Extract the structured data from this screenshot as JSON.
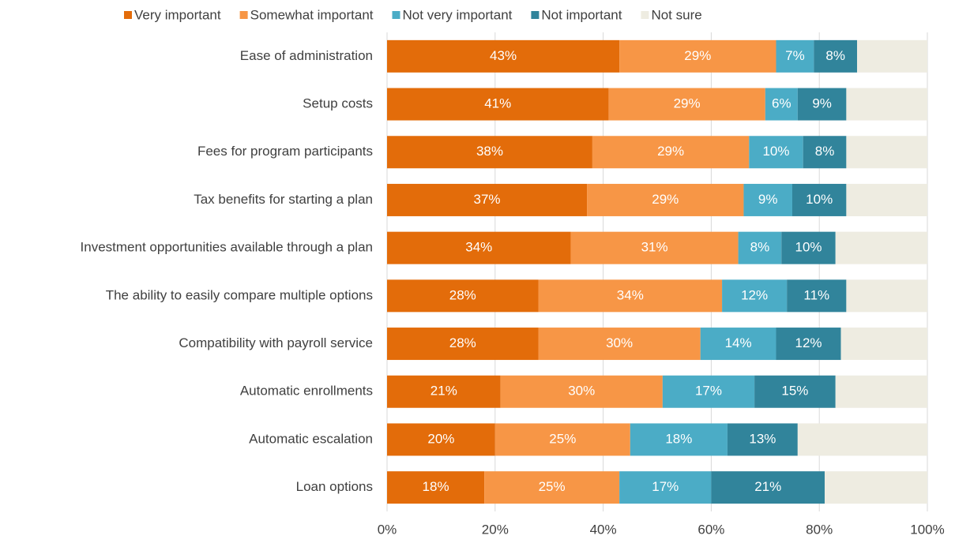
{
  "chart_data": {
    "type": "stacked-barh",
    "categories": [
      "Ease of administration",
      "Setup costs",
      "Fees for program participants",
      "Tax benefits for starting a plan",
      "Investment opportunities available through a plan",
      "The ability to easily compare multiple options",
      "Compatibility with payroll service",
      "Automatic enrollments",
      "Automatic escalation",
      "Loan options"
    ],
    "series": [
      {
        "name": "Very important",
        "color": "#e36c0a",
        "values": [
          43,
          41,
          38,
          37,
          34,
          28,
          28,
          21,
          20,
          18
        ],
        "value_labels": [
          "43%",
          "41%",
          "38%",
          "37%",
          "34%",
          "28%",
          "28%",
          "21%",
          "20%",
          "18%"
        ]
      },
      {
        "name": "Somewhat important",
        "color": "#f79646",
        "values": [
          29,
          29,
          29,
          29,
          31,
          34,
          30,
          30,
          25,
          25
        ],
        "value_labels": [
          "29%",
          "29%",
          "29%",
          "29%",
          "31%",
          "34%",
          "30%",
          "30%",
          "25%",
          "25%"
        ]
      },
      {
        "name": "Not very important",
        "color": "#4bacc6",
        "values": [
          7,
          6,
          10,
          9,
          8,
          12,
          14,
          17,
          18,
          17
        ],
        "value_labels": [
          "7%",
          "6%",
          "10%",
          "9%",
          "8%",
          "12%",
          "14%",
          "17%",
          "18%",
          "17%"
        ]
      },
      {
        "name": "Not important",
        "color": "#31849b",
        "values": [
          8,
          9,
          8,
          10,
          10,
          11,
          12,
          15,
          13,
          21
        ],
        "value_labels": [
          "8%",
          "9%",
          "8%",
          "10%",
          "10%",
          "11%",
          "12%",
          "15%",
          "13%",
          "21%"
        ]
      },
      {
        "name": "Not sure",
        "color": "#eeece1",
        "values": [
          13,
          15,
          15,
          15,
          17,
          15,
          16,
          17,
          24,
          19
        ]
      }
    ],
    "xlim": [
      0,
      100
    ],
    "xticks": [
      {
        "value": 0,
        "label": "0%"
      },
      {
        "value": 20,
        "label": "20%"
      },
      {
        "value": 40,
        "label": "40%"
      },
      {
        "value": 60,
        "label": "60%"
      },
      {
        "value": 80,
        "label": "80%"
      },
      {
        "value": 100,
        "label": "100%"
      }
    ],
    "grid": true,
    "legend": "top"
  }
}
